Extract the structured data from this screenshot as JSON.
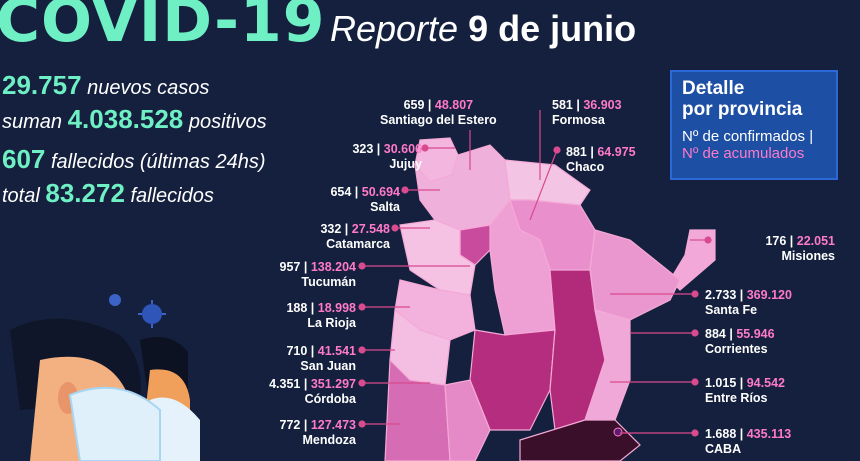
{
  "header": {
    "title": "COVID-19",
    "report_prefix": "Reporte",
    "report_date": "9 de junio"
  },
  "summary": {
    "new_cases_value": "29.757",
    "new_cases_label": "nuevos casos",
    "positives_prefix": "suman",
    "positives_value": "4.038.528",
    "positives_label": "positivos",
    "deaths_24h_value": "607",
    "deaths_24h_label": "fallecidos (últimas 24hs)",
    "total_deaths_prefix": "total",
    "total_deaths_value": "83.272",
    "total_deaths_label": "fallecidos"
  },
  "legend": {
    "heading_line1": "Detalle",
    "heading_line2": "por provincia",
    "confirmed_label": "Nº de confirmados |",
    "accumulated_label": "Nº de acumulados"
  },
  "colors": {
    "background": "#14203d",
    "accent_green": "#6ff0c4",
    "accent_pink": "#ff7ac8",
    "legend_box": "#1d4fa5"
  },
  "provinces": [
    {
      "name": "Santiago del Estero",
      "confirmed": "659",
      "accumulated": "48.807"
    },
    {
      "name": "Formosa",
      "confirmed": "581",
      "accumulated": "36.903"
    },
    {
      "name": "Jujuy",
      "confirmed": "323",
      "accumulated": "30.606"
    },
    {
      "name": "Chaco",
      "confirmed": "881",
      "accumulated": "64.975"
    },
    {
      "name": "Salta",
      "confirmed": "654",
      "accumulated": "50.694"
    },
    {
      "name": "Catamarca",
      "confirmed": "332",
      "accumulated": "27.548"
    },
    {
      "name": "Misiones",
      "confirmed": "176",
      "accumulated": "22.051"
    },
    {
      "name": "Tucumán",
      "confirmed": "957",
      "accumulated": "138.204"
    },
    {
      "name": "Santa Fe",
      "confirmed": "2.733",
      "accumulated": "369.120"
    },
    {
      "name": "La Rioja",
      "confirmed": "188",
      "accumulated": "18.998"
    },
    {
      "name": "Corrientes",
      "confirmed": "884",
      "accumulated": "55.946"
    },
    {
      "name": "San Juan",
      "confirmed": "710",
      "accumulated": "41.541"
    },
    {
      "name": "Entre Ríos",
      "confirmed": "1.015",
      "accumulated": "94.542"
    },
    {
      "name": "Córdoba",
      "confirmed": "4.351",
      "accumulated": "351.297"
    },
    {
      "name": "CABA",
      "confirmed": "1.688",
      "accumulated": "435.113"
    },
    {
      "name": "Mendoza",
      "confirmed": "772",
      "accumulated": "127.473"
    }
  ]
}
